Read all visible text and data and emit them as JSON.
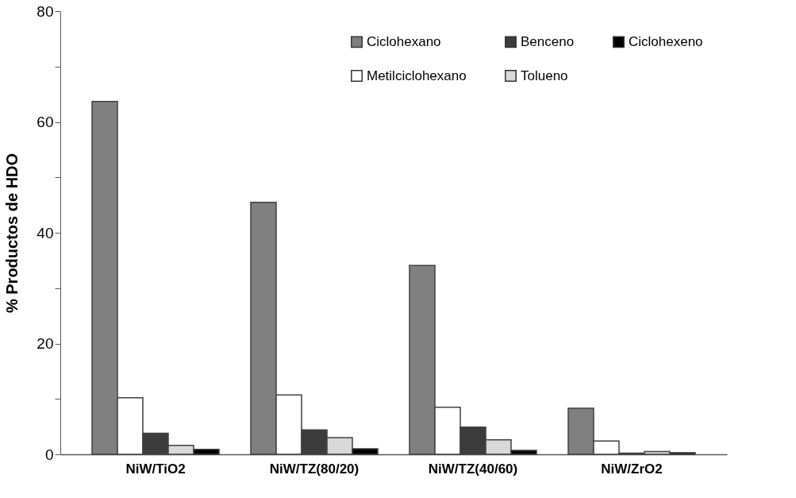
{
  "chart_data": {
    "type": "bar",
    "ylabel": "% Productos de HDO",
    "categories": [
      "NiW/TiO2",
      "NiW/TZ(80/20)",
      "NiW/TZ(40/60)",
      "NiW/ZrO2"
    ],
    "series": [
      {
        "name": "Ciclohexano",
        "color": "#808080",
        "values": [
          63.7,
          45.5,
          34.1,
          8.3
        ]
      },
      {
        "name": "Metilciclohexano",
        "color": "#ffffff",
        "values": [
          10.2,
          10.7,
          8.5,
          2.4
        ]
      },
      {
        "name": "Benceno",
        "color": "#3c3c3c",
        "values": [
          3.8,
          4.4,
          4.9,
          0.2
        ]
      },
      {
        "name": "Tolueno",
        "color": "#d9d9d9",
        "values": [
          1.6,
          3.0,
          2.6,
          0.5
        ]
      },
      {
        "name": "Ciclohexeno",
        "color": "#000000",
        "values": [
          0.9,
          1.0,
          0.7,
          0.3
        ]
      }
    ],
    "ylim": [
      0,
      80
    ],
    "yticks": [
      0,
      {
        "value": 10,
        "label": null
      },
      20,
      {
        "value": 30,
        "label": null
      },
      40,
      {
        "value": 50,
        "label": null
      },
      60,
      {
        "value": 70,
        "label": null
      },
      80
    ],
    "grid": false,
    "legend": "top right"
  }
}
